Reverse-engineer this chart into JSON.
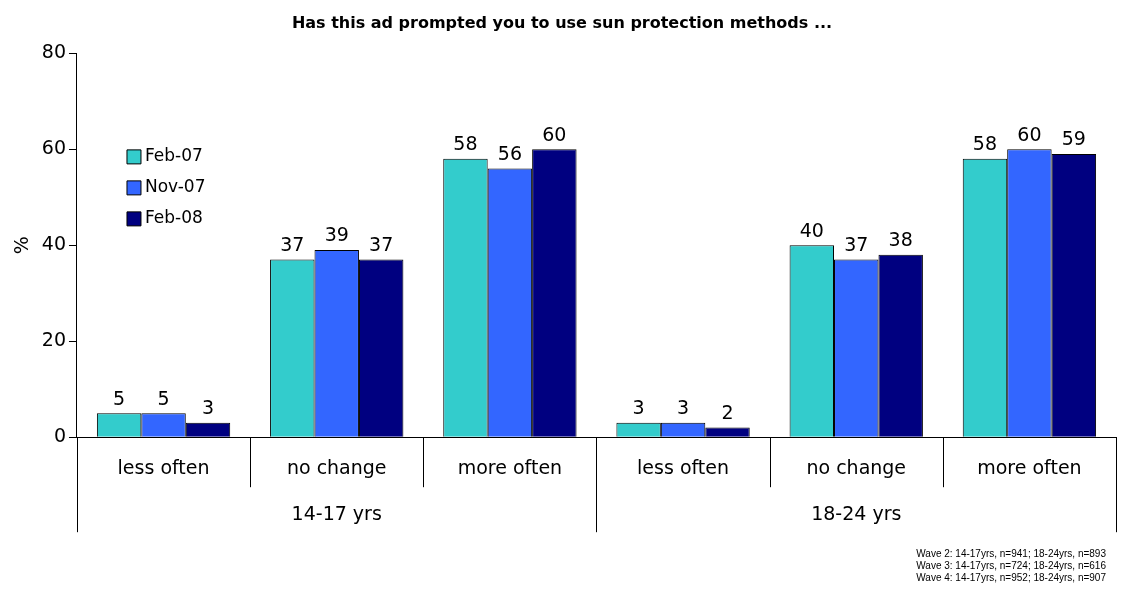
{
  "chart_data": {
    "type": "bar",
    "title": "Has this ad prompted you to use sun protection methods ...",
    "ylabel": "%",
    "categories": [
      "less often",
      "no change",
      "more often",
      "less often",
      "no change",
      "more often"
    ],
    "series": [
      {
        "name": "Feb-07",
        "color": "#33cccc",
        "values": [
          5,
          37,
          58,
          3,
          40,
          58
        ]
      },
      {
        "name": "Nov-07",
        "color": "#3366ff",
        "values": [
          5,
          39,
          56,
          3,
          37,
          60
        ]
      },
      {
        "name": "Feb-08",
        "color": "#000080",
        "values": [
          3,
          37,
          60,
          2,
          38,
          59
        ]
      }
    ],
    "ylim": [
      0,
      80
    ],
    "yticks": [
      0,
      20,
      40,
      60,
      80
    ],
    "grid": false,
    "legend": "left",
    "data_labels": true,
    "annotations": [
      "14-17 yrs",
      "18-24 yrs",
      "Wave 2: 14-17yrs, n=941; 18-24yrs, n=893\nWave 3: 14-17yrs, n=724; 18-24yrs, n=616\nWave 4: 14-17yrs, n=952; 18-24yrs, n=907"
    ]
  }
}
